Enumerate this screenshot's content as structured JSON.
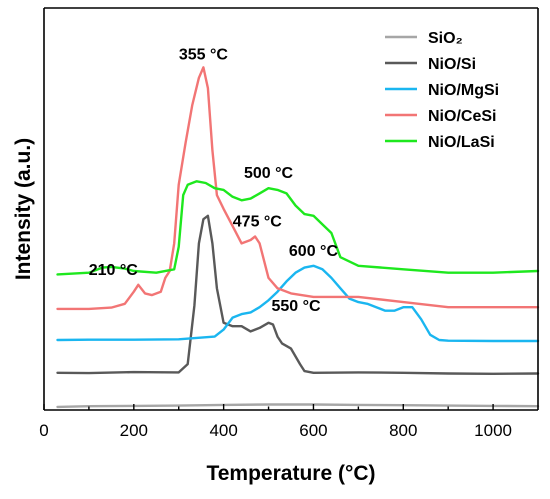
{
  "chart_data": {
    "type": "line",
    "xlabel": "Temperature (°C)",
    "ylabel": "Intensity (a.u.)",
    "xlim": [
      0,
      1100
    ],
    "xticks": [
      0,
      200,
      400,
      600,
      800,
      1000
    ],
    "xtick_labels": [
      "0",
      "200",
      "400",
      "600",
      "800",
      "1000"
    ],
    "ylim": [
      0,
      100
    ],
    "yticks_shown": false,
    "legend_position": "top-right",
    "series": [
      {
        "name": "SiO₂",
        "color": "#a6a6a6",
        "x": [
          30,
          100,
          200,
          300,
          400,
          500,
          600,
          700,
          800,
          900,
          1000,
          1100
        ],
        "y": [
          0.6,
          0.8,
          0.9,
          1.0,
          1.2,
          1.3,
          1.3,
          1.2,
          1.1,
          1.0,
          0.9,
          0.8
        ]
      },
      {
        "name": "NiO/Si",
        "color": "#595959",
        "x": [
          30,
          100,
          200,
          300,
          320,
          335,
          345,
          355,
          365,
          375,
          385,
          400,
          420,
          440,
          460,
          480,
          500,
          510,
          520,
          530,
          550,
          570,
          580,
          600,
          700,
          800,
          900,
          1000,
          1100
        ],
        "y": [
          10.5,
          10.4,
          10.7,
          10.6,
          13,
          30,
          48,
          55,
          56,
          48,
          35,
          25,
          24,
          24,
          22.5,
          23.5,
          25,
          24.5,
          21,
          19,
          17.5,
          13,
          11,
          10.5,
          10.6,
          10.5,
          10.3,
          10.2,
          10.3
        ]
      },
      {
        "name": "NiO/MgSi",
        "color": "#1ab6f0",
        "x": [
          30,
          100,
          200,
          300,
          380,
          400,
          420,
          440,
          460,
          480,
          500,
          520,
          540,
          560,
          580,
          600,
          620,
          640,
          660,
          680,
          700,
          720,
          740,
          760,
          780,
          800,
          820,
          840,
          860,
          880,
          900,
          1000,
          1100
        ],
        "y": [
          20,
          20.1,
          20.1,
          20.2,
          21,
          23,
          26.5,
          27.5,
          28,
          29.5,
          31.5,
          34,
          37,
          39.5,
          41,
          41.5,
          40.5,
          38,
          35,
          32,
          31,
          30.5,
          29.5,
          28.5,
          28.5,
          29.5,
          29.5,
          26,
          21.5,
          20,
          19.8,
          19.7,
          19.7
        ]
      },
      {
        "name": "NiO/CeSi",
        "color": "#f27575",
        "x": [
          30,
          100,
          150,
          180,
          200,
          210,
          225,
          240,
          260,
          270,
          280,
          290,
          300,
          315,
          330,
          345,
          355,
          365,
          375,
          385,
          400,
          420,
          440,
          460,
          470,
          480,
          500,
          520,
          550,
          600,
          700,
          800,
          900,
          1000,
          1100
        ],
        "y": [
          29,
          29,
          29.4,
          30.5,
          34,
          36,
          33.5,
          33,
          34,
          38,
          40,
          48,
          65,
          77,
          88,
          96,
          99,
          93,
          75,
          62,
          58,
          53,
          48,
          49,
          50,
          48,
          38,
          35,
          33.5,
          32.5,
          32.5,
          31,
          29.5,
          29.5,
          29.5
        ]
      },
      {
        "name": "NiO/LaSi",
        "color": "#1ee81e",
        "x": [
          30,
          100,
          130,
          150,
          180,
          200,
          250,
          290,
          300,
          310,
          320,
          340,
          360,
          380,
          400,
          420,
          440,
          460,
          480,
          500,
          520,
          540,
          560,
          580,
          600,
          620,
          640,
          660,
          700,
          800,
          900,
          1000,
          1100
        ],
        "y": [
          39,
          39.5,
          41,
          41.2,
          40.7,
          40,
          39.5,
          40.5,
          47,
          62,
          65,
          66,
          65.5,
          64,
          63.5,
          61.5,
          60.5,
          61,
          62.5,
          64,
          63.5,
          62.5,
          59,
          56.5,
          56,
          53.5,
          51,
          44,
          41.5,
          40.5,
          39.5,
          39.5,
          40
        ]
      }
    ],
    "annotations": [
      {
        "text": "355 °C",
        "x": 355,
        "y": 99
      },
      {
        "text": "500 °C",
        "x": 500,
        "y": 64
      },
      {
        "text": "475 °C",
        "x": 475,
        "y": 50
      },
      {
        "text": "600 °C",
        "x": 600,
        "y": 41.5
      },
      {
        "text": "210 °C",
        "x": 210,
        "y": 36
      },
      {
        "text": "550 °C",
        "x": 550,
        "y": 25
      }
    ]
  }
}
